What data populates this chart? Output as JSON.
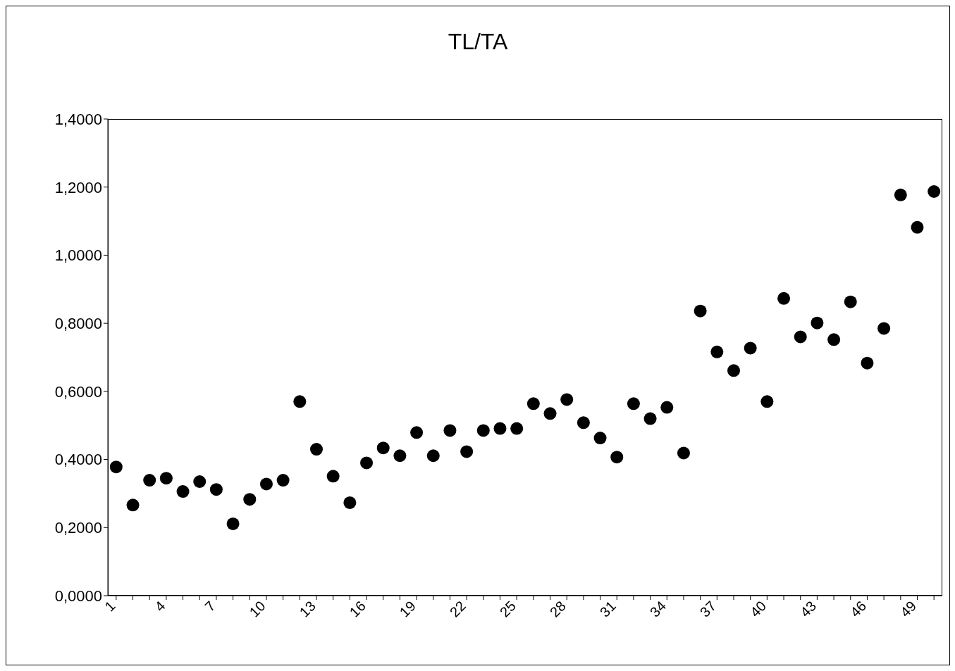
{
  "chart_data": {
    "type": "scatter",
    "title": "TL/TA",
    "categories": [
      "1",
      null,
      null,
      "4",
      null,
      null,
      "7",
      null,
      null,
      "10",
      null,
      null,
      "13",
      null,
      null,
      "16",
      null,
      null,
      "19",
      null,
      null,
      "22",
      null,
      null,
      "25",
      null,
      null,
      "28",
      null,
      null,
      "31",
      null,
      null,
      "34",
      null,
      null,
      "37",
      null,
      null,
      "40",
      null,
      null,
      "43",
      null,
      null,
      "46",
      null,
      null,
      "49",
      null
    ],
    "series": [
      {
        "color": "#000000",
        "values": [
          0.378,
          0.266,
          0.339,
          0.345,
          0.306,
          0.335,
          0.312,
          0.211,
          0.283,
          0.328,
          0.339,
          0.57,
          0.43,
          0.351,
          0.273,
          0.39,
          0.434,
          0.411,
          0.479,
          0.411,
          0.485,
          0.423,
          0.485,
          0.491,
          0.491,
          0.564,
          0.535,
          0.576,
          0.508,
          0.463,
          0.407,
          0.564,
          0.52,
          0.553,
          0.419,
          0.836,
          0.716,
          0.661,
          0.727,
          0.57,
          0.873,
          0.76,
          0.801,
          0.752,
          0.863,
          0.683,
          0.785,
          1.177,
          1.082,
          1.187
        ]
      }
    ],
    "ylim": [
      0,
      1.4
    ],
    "yticks": [
      {
        "value": 0,
        "label": "0,0000"
      },
      {
        "value": 0.2,
        "label": "0,2000"
      },
      {
        "value": 0.4,
        "label": "0,4000"
      },
      {
        "value": 0.6,
        "label": "0,6000"
      },
      {
        "value": 0.8,
        "label": "0,8000"
      },
      {
        "value": 1.0,
        "label": "1,0000"
      },
      {
        "value": 1.2,
        "label": "1,2000"
      },
      {
        "value": 1.4,
        "label": "1,4000"
      }
    ],
    "marker": "circle",
    "grid": false
  }
}
